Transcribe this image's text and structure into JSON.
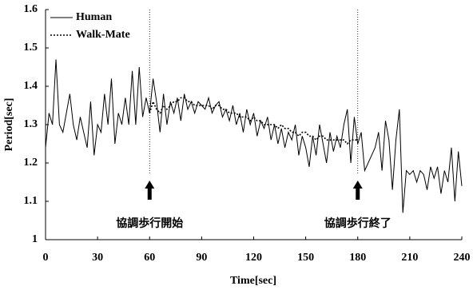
{
  "chart_data": {
    "type": "line",
    "xlabel": "Time[sec]",
    "ylabel": "Period[sec]",
    "x": [
      0,
      2,
      4,
      6,
      8,
      10,
      12,
      14,
      16,
      18,
      20,
      22,
      24,
      26,
      28,
      30,
      32,
      34,
      36,
      38,
      40,
      42,
      44,
      46,
      48,
      50,
      52,
      54,
      56,
      58,
      60,
      62,
      64,
      66,
      68,
      70,
      72,
      74,
      76,
      78,
      80,
      82,
      84,
      86,
      88,
      90,
      92,
      94,
      96,
      98,
      100,
      102,
      104,
      106,
      108,
      110,
      112,
      114,
      116,
      118,
      120,
      122,
      124,
      126,
      128,
      130,
      132,
      134,
      136,
      138,
      140,
      142,
      144,
      146,
      148,
      150,
      152,
      154,
      156,
      158,
      160,
      162,
      164,
      166,
      168,
      170,
      172,
      174,
      176,
      178,
      180,
      182,
      184,
      186,
      188,
      190,
      192,
      194,
      196,
      198,
      200,
      202,
      204,
      206,
      208,
      210,
      212,
      214,
      216,
      218,
      220,
      222,
      224,
      226,
      228,
      230,
      232,
      234,
      236,
      238,
      240
    ],
    "series": [
      {
        "name": "Human",
        "color": "#000000",
        "line_style": "solid",
        "values": [
          1.24,
          1.33,
          1.3,
          1.47,
          1.3,
          1.28,
          1.33,
          1.38,
          1.3,
          1.26,
          1.32,
          1.28,
          1.24,
          1.36,
          1.22,
          1.3,
          1.28,
          1.38,
          1.3,
          1.42,
          1.25,
          1.33,
          1.3,
          1.37,
          1.3,
          1.44,
          1.3,
          1.45,
          1.32,
          1.37,
          1.33,
          1.42,
          1.36,
          1.28,
          1.38,
          1.3,
          1.36,
          1.33,
          1.37,
          1.31,
          1.38,
          1.34,
          1.36,
          1.33,
          1.36,
          1.35,
          1.34,
          1.37,
          1.33,
          1.35,
          1.36,
          1.32,
          1.34,
          1.31,
          1.35,
          1.3,
          1.33,
          1.28,
          1.34,
          1.3,
          1.33,
          1.27,
          1.31,
          1.29,
          1.32,
          1.26,
          1.3,
          1.25,
          1.29,
          1.24,
          1.28,
          1.26,
          1.3,
          1.22,
          1.27,
          1.24,
          1.19,
          1.27,
          1.22,
          1.3,
          1.25,
          1.2,
          1.28,
          1.23,
          1.27,
          1.24,
          1.3,
          1.34,
          1.2,
          1.32,
          1.25,
          1.28,
          1.18,
          1.2,
          1.22,
          1.24,
          1.28,
          1.18,
          1.31,
          1.26,
          1.13,
          1.26,
          1.34,
          1.07,
          1.18,
          1.17,
          1.18,
          1.15,
          1.18,
          1.17,
          1.13,
          1.19,
          1.16,
          1.19,
          1.12,
          1.18,
          1.15,
          1.24,
          1.1,
          1.23,
          1.14
        ]
      },
      {
        "name": "Walk-Mate",
        "color": "#000000",
        "line_style": "dotted",
        "values": [
          null,
          null,
          null,
          null,
          null,
          null,
          null,
          null,
          null,
          null,
          null,
          null,
          null,
          null,
          null,
          null,
          null,
          null,
          null,
          null,
          null,
          null,
          null,
          null,
          null,
          null,
          null,
          null,
          null,
          null,
          1.33,
          1.36,
          1.34,
          1.33,
          1.35,
          1.34,
          1.35,
          1.36,
          1.36,
          1.37,
          1.37,
          1.36,
          1.36,
          1.35,
          1.35,
          1.35,
          1.35,
          1.35,
          1.34,
          1.35,
          1.35,
          1.34,
          1.34,
          1.33,
          1.33,
          1.33,
          1.32,
          1.32,
          1.32,
          1.31,
          1.32,
          1.31,
          1.31,
          1.3,
          1.3,
          1.3,
          1.3,
          1.29,
          1.3,
          1.29,
          1.29,
          1.28,
          1.28,
          1.27,
          1.28,
          1.28,
          1.27,
          1.27,
          1.26,
          1.27,
          1.27,
          1.26,
          1.26,
          1.26,
          1.26,
          1.26,
          1.26,
          1.25,
          1.26,
          1.26,
          1.26,
          null,
          null,
          null,
          null,
          null,
          null,
          null,
          null,
          null,
          null,
          null,
          null,
          null,
          null,
          null,
          null,
          null,
          null,
          null,
          null,
          null,
          null,
          null,
          null,
          null,
          null,
          null,
          null,
          null,
          null
        ]
      }
    ],
    "xlim": [
      0,
      240
    ],
    "xticks": [
      0,
      30,
      60,
      90,
      120,
      150,
      180,
      210,
      240
    ],
    "ylim": [
      1,
      1.6
    ],
    "yticks": [
      1,
      1.1,
      1.2,
      1.3,
      1.4,
      1.5,
      1.6
    ],
    "legend": "upper left",
    "annotations": [
      {
        "x": 60,
        "label": "協調歩行開始"
      },
      {
        "x": 180,
        "label": "協調歩行終了"
      }
    ]
  }
}
